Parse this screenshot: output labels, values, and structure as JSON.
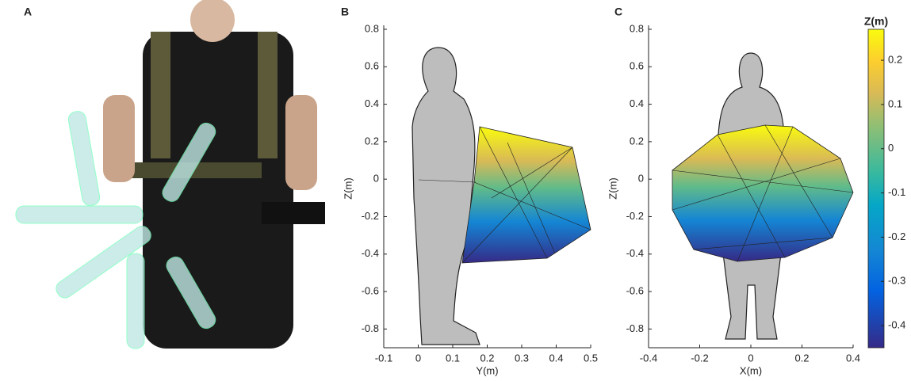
{
  "panels": [
    {
      "label": "A"
    },
    {
      "label": "B",
      "xlabel": "Y(m)",
      "ylabel": "Z(m)",
      "xlim": [
        -0.1,
        0.5
      ],
      "ylim": [
        -0.9,
        0.8
      ],
      "xticks": [
        -0.1,
        0,
        0.1,
        0.2,
        0.3,
        0.4,
        0.5
      ],
      "yticks": [
        0.8,
        0.6,
        0.4,
        0.2,
        0,
        -0.2,
        -0.4,
        -0.6,
        -0.8
      ]
    },
    {
      "label": "C",
      "xlabel": "X(m)",
      "ylabel": "Z(m)",
      "xlim": [
        -0.4,
        0.4
      ],
      "ylim": [
        -0.9,
        0.8
      ],
      "xticks": [
        -0.4,
        -0.2,
        0,
        0.2,
        0.4
      ],
      "yticks": [
        0.8,
        0.6,
        0.4,
        0.2,
        0,
        -0.2,
        -0.4,
        -0.6,
        -0.8
      ]
    }
  ],
  "colorbar": {
    "title": "Z(m)",
    "clim": [
      -0.45,
      0.27
    ],
    "ticks": [
      0.2,
      0.1,
      0,
      -0.1,
      -0.2,
      -0.3,
      -0.4
    ]
  }
}
